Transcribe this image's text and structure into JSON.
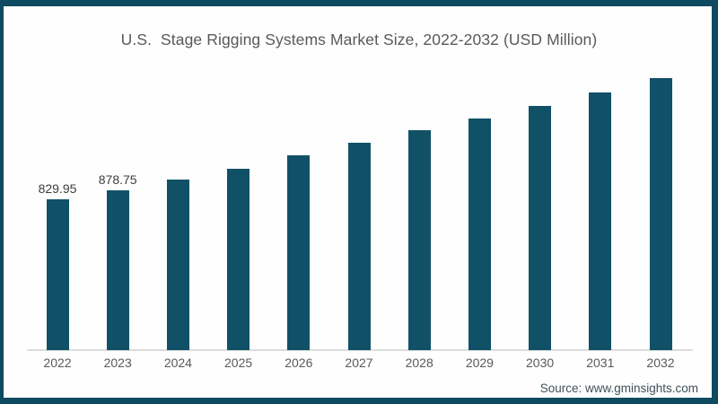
{
  "title": "U.S.  Stage Rigging Systems Market Size, 2022-2032 (USD Million)",
  "source": "Source: www.gminsights.com",
  "colors": {
    "bar": "#115167",
    "frame": "#0e4a60",
    "axis_line": "#dcdcdc",
    "title_text": "#58595b",
    "tick_text": "#595959",
    "value_label_text": "#3d3d3d",
    "source_text": "#41505a",
    "background": "#fdfefd"
  },
  "chart_data": {
    "type": "bar",
    "title": "U.S.  Stage Rigging Systems Market Size, 2022-2032 (USD Million)",
    "categories": [
      "2022",
      "2023",
      "2024",
      "2025",
      "2026",
      "2027",
      "2028",
      "2029",
      "2030",
      "2031",
      "2032"
    ],
    "values": [
      829.95,
      878.75,
      940,
      1000,
      1070,
      1140,
      1210,
      1275,
      1345,
      1420,
      1495
    ],
    "data_labels": [
      "829.95",
      "878.75",
      "",
      "",
      "",
      "",
      "",
      "",
      "",
      "",
      ""
    ],
    "xlabel": "",
    "ylabel": "",
    "ylim": [
      0,
      1550
    ],
    "grid": false,
    "legend": false
  }
}
